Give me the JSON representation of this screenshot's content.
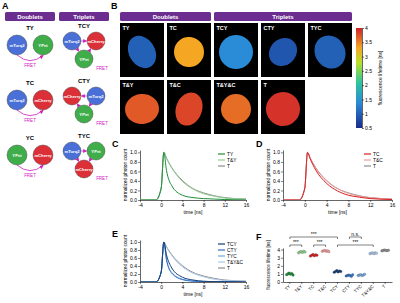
{
  "panel_a": {
    "label": "A",
    "headers": [
      "Doublets",
      "Triplets"
    ],
    "fret": "FRET",
    "domains": [
      {
        "name": "mTurq2",
        "color": "#4a6fd6"
      },
      {
        "name": "YPet",
        "color": "#3fae4a"
      },
      {
        "name": "mCherry",
        "color": "#dc3038"
      }
    ],
    "doublets": [
      {
        "name": "TY",
        "domains": [
          "mTurq2",
          "YPet"
        ]
      },
      {
        "name": "TC",
        "domains": [
          "mTurq2",
          "mCherry"
        ]
      },
      {
        "name": "YC",
        "domains": [
          "YPet",
          "mCherry"
        ]
      }
    ],
    "triplets": [
      {
        "name": "TCY",
        "domains": [
          "mTurq2",
          "mCherry",
          "YPet"
        ]
      },
      {
        "name": "CTY",
        "domains": [
          "mCherry",
          "mTurq2",
          "YPet"
        ]
      },
      {
        "name": "TYC",
        "domains": [
          "mTurq2",
          "YPet",
          "mCherry"
        ]
      }
    ]
  },
  "panel_b": {
    "label": "B",
    "headers": [
      "Doublets",
      "Triplets"
    ],
    "rows": [
      [
        {
          "name": "TY",
          "lifetime": 1.0
        },
        {
          "name": "TC",
          "lifetime": 3.3
        },
        {
          "name": "TCY",
          "lifetime": 1.4
        },
        {
          "name": "CTY",
          "lifetime": 0.9
        },
        {
          "name": "TYC",
          "lifetime": 1.0
        }
      ],
      [
        {
          "name": "T&Y",
          "lifetime": 3.7
        },
        {
          "name": "T&C",
          "lifetime": 3.8
        },
        {
          "name": "T&Y&C",
          "lifetime": 3.6
        },
        {
          "name": "T",
          "lifetime": 3.9
        }
      ]
    ],
    "colorbar": {
      "title": "fluorescence lifetime [ns]",
      "range": [
        0.5,
        4
      ],
      "ticks": [
        0.5,
        1,
        1.5,
        2,
        2.5,
        3,
        3.5,
        4
      ]
    }
  },
  "chart_data": [
    {
      "label": "C",
      "type": "line",
      "xlabel": "time [ns]",
      "ylabel": "normalized photon count",
      "x": [
        -4,
        -1,
        0,
        0.5,
        1,
        2,
        4,
        6,
        8,
        10,
        12,
        16
      ],
      "xlim": [
        -4,
        16
      ],
      "xticks": [
        -4,
        0,
        4,
        8,
        12,
        16
      ],
      "ylim": [
        0,
        1.05
      ],
      "yticks": [
        {
          "value": 0,
          "label": "0.0"
        },
        0.2,
        0.4,
        0.6,
        0.8,
        {
          "value": 1,
          "label": "1.0"
        }
      ],
      "legend": "upper right",
      "series": [
        {
          "name": "TY",
          "color": "#1e8c3a",
          "values": [
            0,
            0,
            0.25,
            1,
            0.62,
            0.3,
            0.1,
            0.05,
            0.03,
            0.02,
            0.01,
            0
          ]
        },
        {
          "name": "T&Y",
          "color": "#8fd18f",
          "values": [
            0,
            0,
            0.25,
            1,
            0.87,
            0.67,
            0.39,
            0.23,
            0.13,
            0.08,
            0.04,
            0.02
          ]
        },
        {
          "name": "T",
          "color": "#8c8c8c",
          "values": [
            0,
            0,
            0.25,
            1,
            0.88,
            0.68,
            0.41,
            0.24,
            0.15,
            0.09,
            0.05,
            0.02
          ]
        }
      ]
    },
    {
      "label": "D",
      "type": "line",
      "xlabel": "time [ns]",
      "ylabel": "normalized photon count",
      "x": [
        -4,
        -1,
        0,
        0.5,
        1,
        2,
        4,
        6,
        8,
        10,
        12,
        16
      ],
      "xlim": [
        -4,
        16
      ],
      "xticks": [
        -4,
        0,
        4,
        8,
        12,
        16
      ],
      "ylim": [
        0,
        1.05
      ],
      "yticks": [
        {
          "value": 0,
          "label": "0.0"
        },
        0.2,
        0.4,
        0.6,
        0.8,
        {
          "value": 1,
          "label": "1.0"
        }
      ],
      "legend": "upper right",
      "series": [
        {
          "name": "TC",
          "color": "#d62020",
          "values": [
            0,
            0,
            0.25,
            1,
            0.86,
            0.63,
            0.35,
            0.19,
            0.1,
            0.06,
            0.03,
            0.01
          ]
        },
        {
          "name": "T&C",
          "color": "#f29a9a",
          "values": [
            0,
            0,
            0.25,
            1,
            0.88,
            0.67,
            0.4,
            0.24,
            0.14,
            0.08,
            0.05,
            0.02
          ]
        },
        {
          "name": "T",
          "color": "#8c8c8c",
          "values": [
            0,
            0,
            0.25,
            1,
            0.88,
            0.68,
            0.41,
            0.24,
            0.15,
            0.09,
            0.05,
            0.02
          ]
        }
      ]
    },
    {
      "label": "E",
      "type": "line",
      "xlabel": "time [ns]",
      "ylabel": "normalized photon count",
      "x": [
        -4,
        -1,
        0,
        0.5,
        1,
        2,
        4,
        6,
        8,
        10,
        12,
        16
      ],
      "xlim": [
        -4,
        16
      ],
      "xticks": [
        -4,
        0,
        4,
        8,
        12,
        16
      ],
      "ylim": [
        0,
        1.05
      ],
      "yticks": [
        {
          "value": 0,
          "label": "0.0"
        },
        0.2,
        0.4,
        0.6,
        0.8,
        {
          "value": 1,
          "label": "1.0"
        }
      ],
      "legend": "upper right",
      "series": [
        {
          "name": "TCY",
          "color": "#153e75",
          "values": [
            0,
            0,
            0.25,
            1,
            0.68,
            0.35,
            0.12,
            0.05,
            0.02,
            0.01,
            0.01,
            0
          ]
        },
        {
          "name": "CTY",
          "color": "#2f6fc4",
          "values": [
            0,
            0,
            0.25,
            1,
            0.55,
            0.22,
            0.06,
            0.02,
            0.01,
            0,
            0,
            0
          ]
        },
        {
          "name": "TYC",
          "color": "#6fa8e0",
          "values": [
            0,
            0,
            0.25,
            1,
            0.57,
            0.24,
            0.07,
            0.03,
            0.01,
            0.01,
            0,
            0
          ]
        },
        {
          "name": "T&Y&C",
          "color": "#aac8ea",
          "values": [
            0,
            0,
            0.25,
            1,
            0.87,
            0.66,
            0.38,
            0.22,
            0.13,
            0.07,
            0.04,
            0.02
          ]
        },
        {
          "name": "T",
          "color": "#8c8c8c",
          "values": [
            0,
            0,
            0.25,
            1,
            0.88,
            0.68,
            0.41,
            0.24,
            0.15,
            0.09,
            0.05,
            0.02
          ]
        }
      ]
    },
    {
      "label": "F",
      "type": "strip",
      "ylabel": "fluorescence lifetime [ns]",
      "marker": "circle",
      "categories": [
        "TY",
        "T&Y",
        "TC",
        "T&C",
        "TCY",
        "CTY",
        "TYC",
        "T&Y&C",
        "T"
      ],
      "values": [
        [
          0.9,
          1.0,
          1.1,
          0.95,
          1.05,
          0.85
        ],
        [
          3.6,
          3.7,
          3.75,
          3.65,
          3.8,
          3.7
        ],
        [
          3.2,
          3.3,
          3.4,
          3.25,
          3.35,
          3.3
        ],
        [
          3.8,
          3.85,
          3.9,
          3.8,
          3.85,
          3.75
        ],
        [
          1.2,
          1.3,
          1.4,
          1.25,
          1.35,
          1.3
        ],
        [
          0.75,
          0.8,
          0.85,
          0.8,
          0.7,
          0.9
        ],
        [
          0.8,
          0.85,
          0.9,
          0.8,
          0.85,
          0.95
        ],
        [
          3.5,
          3.55,
          3.6,
          3.5,
          3.6,
          3.55
        ],
        [
          3.85,
          3.9,
          3.95,
          3.9,
          3.88,
          3.92
        ]
      ],
      "colors": [
        "#1e8c3a",
        "#8fd18f",
        "#d62020",
        "#f29a9a",
        "#153e75",
        "#2f6fc4",
        "#6fa8e0",
        "#aac8ea",
        "#8c8c8c"
      ],
      "ylim": [
        0,
        4.2
      ],
      "yticks": [
        0,
        1,
        2,
        3,
        4
      ],
      "annotations": [
        {
          "between": [
            "TY",
            "T&Y"
          ],
          "label": "***"
        },
        {
          "between": [
            "TC",
            "T&C"
          ],
          "label": "***"
        },
        {
          "between": [
            "TCY",
            "T&Y&C"
          ],
          "label": "***"
        },
        {
          "between": [
            "TY",
            "TCY"
          ],
          "label": "***"
        },
        {
          "between": [
            "CTY",
            "TYC"
          ],
          "label": "n.s."
        }
      ]
    }
  ]
}
